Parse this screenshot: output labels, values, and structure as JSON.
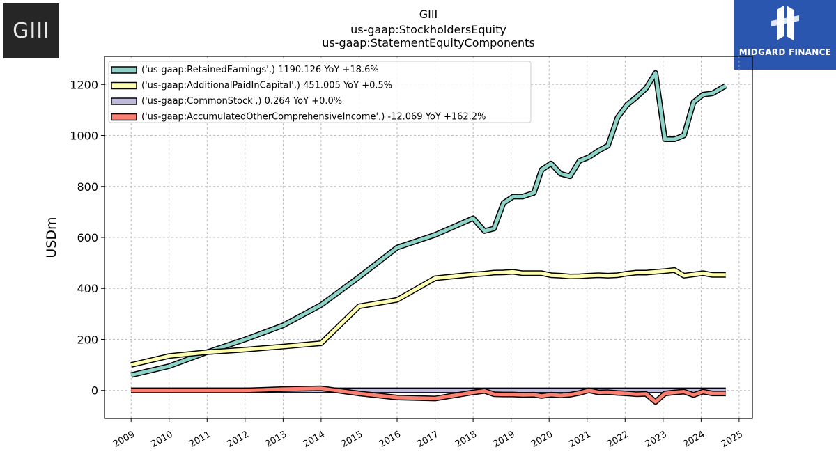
{
  "header": {
    "title_line1": "GIII",
    "title_line2": "us-gaap:StockholdersEquity",
    "title_line3": "us-gaap:StatementEquityComponents"
  },
  "logos": {
    "left_text": "GIII",
    "right_text": "MIDGARD FINANCE"
  },
  "chart_data": {
    "type": "line",
    "ylabel": "USDm",
    "xlabel": "",
    "xlim": [
      2008.3,
      2025.35
    ],
    "ylim": [
      -110,
      1310
    ],
    "grid": true,
    "legend_placement": "top-left",
    "x_ticks": [
      2009,
      2010,
      2011,
      2012,
      2013,
      2014,
      2015,
      2016,
      2017,
      2018,
      2019,
      2020,
      2021,
      2022,
      2023,
      2024,
      2025
    ],
    "y_ticks": [
      0,
      200,
      400,
      600,
      800,
      1000,
      1200
    ],
    "series": [
      {
        "name": "('us-gaap:RetainedEarnings',) 1190.126 YoY +18.6%",
        "color": "#8dd3c7",
        "points": [
          [
            2009.0,
            60
          ],
          [
            2010.0,
            95
          ],
          [
            2011.0,
            150
          ],
          [
            2012.0,
            200
          ],
          [
            2013.0,
            255
          ],
          [
            2014.0,
            335
          ],
          [
            2015.0,
            445
          ],
          [
            2016.0,
            560
          ],
          [
            2017.0,
            610
          ],
          [
            2018.0,
            675
          ],
          [
            2018.3,
            625
          ],
          [
            2018.55,
            635
          ],
          [
            2018.8,
            735
          ],
          [
            2019.05,
            760
          ],
          [
            2019.3,
            760
          ],
          [
            2019.6,
            775
          ],
          [
            2019.8,
            865
          ],
          [
            2020.05,
            890
          ],
          [
            2020.3,
            850
          ],
          [
            2020.55,
            840
          ],
          [
            2020.8,
            900
          ],
          [
            2021.05,
            915
          ],
          [
            2021.3,
            940
          ],
          [
            2021.55,
            960
          ],
          [
            2021.8,
            1070
          ],
          [
            2022.05,
            1120
          ],
          [
            2022.3,
            1150
          ],
          [
            2022.55,
            1185
          ],
          [
            2022.8,
            1245
          ],
          [
            2023.05,
            985
          ],
          [
            2023.3,
            985
          ],
          [
            2023.55,
            1000
          ],
          [
            2023.8,
            1130
          ],
          [
            2024.05,
            1160
          ],
          [
            2024.3,
            1165
          ],
          [
            2024.65,
            1195
          ]
        ]
      },
      {
        "name": "('us-gaap:AdditionalPaidInCapital',) 451.005 YoY +0.5%",
        "color": "#ffffb3",
        "points": [
          [
            2009.0,
            100
          ],
          [
            2010.0,
            135
          ],
          [
            2011.0,
            150
          ],
          [
            2012.0,
            160
          ],
          [
            2013.0,
            172
          ],
          [
            2014.0,
            185
          ],
          [
            2015.0,
            330
          ],
          [
            2016.0,
            355
          ],
          [
            2017.0,
            440
          ],
          [
            2018.0,
            455
          ],
          [
            2018.3,
            458
          ],
          [
            2018.55,
            462
          ],
          [
            2018.8,
            463
          ],
          [
            2019.05,
            465
          ],
          [
            2019.3,
            460
          ],
          [
            2019.6,
            460
          ],
          [
            2019.8,
            460
          ],
          [
            2020.05,
            452
          ],
          [
            2020.3,
            450
          ],
          [
            2020.55,
            447
          ],
          [
            2020.8,
            448
          ],
          [
            2021.05,
            450
          ],
          [
            2021.3,
            452
          ],
          [
            2021.55,
            450
          ],
          [
            2021.8,
            452
          ],
          [
            2022.05,
            458
          ],
          [
            2022.3,
            462
          ],
          [
            2022.55,
            462
          ],
          [
            2022.8,
            465
          ],
          [
            2023.05,
            468
          ],
          [
            2023.3,
            472
          ],
          [
            2023.55,
            450
          ],
          [
            2023.8,
            455
          ],
          [
            2024.05,
            460
          ],
          [
            2024.3,
            453
          ],
          [
            2024.65,
            453
          ]
        ]
      },
      {
        "name": "('us-gaap:CommonStock',) 0.264 YoY +0.0%",
        "color": "#bebada",
        "points": [
          [
            2009.0,
            0.26
          ],
          [
            2024.65,
            0.26
          ]
        ]
      },
      {
        "name": "('us-gaap:AccumulatedOtherComprehensiveIncome',) -12.069 YoY +162.2%",
        "color": "#fb8072",
        "points": [
          [
            2009.0,
            0
          ],
          [
            2010.0,
            0
          ],
          [
            2011.0,
            0
          ],
          [
            2012.0,
            0
          ],
          [
            2013.0,
            5
          ],
          [
            2014.0,
            8
          ],
          [
            2015.0,
            -12
          ],
          [
            2016.0,
            -28
          ],
          [
            2017.0,
            -32
          ],
          [
            2018.0,
            -8
          ],
          [
            2018.3,
            -2
          ],
          [
            2018.55,
            -15
          ],
          [
            2018.8,
            -16
          ],
          [
            2019.05,
            -16
          ],
          [
            2019.3,
            -18
          ],
          [
            2019.6,
            -17
          ],
          [
            2019.8,
            -22
          ],
          [
            2020.05,
            -17
          ],
          [
            2020.3,
            -20
          ],
          [
            2020.55,
            -17
          ],
          [
            2020.8,
            -10
          ],
          [
            2021.05,
            0
          ],
          [
            2021.3,
            -8
          ],
          [
            2021.55,
            -7
          ],
          [
            2021.8,
            -10
          ],
          [
            2022.05,
            -12
          ],
          [
            2022.3,
            -15
          ],
          [
            2022.55,
            -14
          ],
          [
            2022.8,
            -45
          ],
          [
            2023.05,
            -12
          ],
          [
            2023.3,
            -8
          ],
          [
            2023.55,
            -5
          ],
          [
            2023.8,
            -18
          ],
          [
            2024.05,
            -5
          ],
          [
            2024.3,
            -12
          ],
          [
            2024.65,
            -12
          ]
        ]
      }
    ]
  }
}
